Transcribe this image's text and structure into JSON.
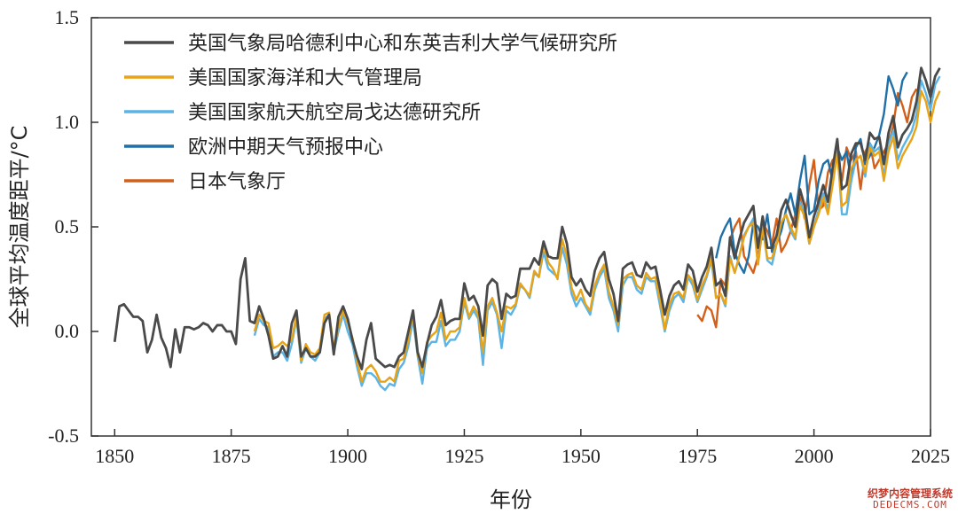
{
  "chart_data": {
    "type": "line",
    "xlabel": "年份",
    "ylabel": "全球平均温度距平/°C",
    "xlim": [
      1845,
      2025
    ],
    "ylim": [
      -0.5,
      1.5
    ],
    "xticks": [
      1850,
      1875,
      1900,
      1925,
      1950,
      1975,
      2000,
      2025
    ],
    "yticks": [
      "-0.5",
      "0.0",
      "0.5",
      "1.0",
      "1.5"
    ],
    "yticks_values": [
      -0.5,
      0.0,
      0.5,
      1.0,
      1.5
    ],
    "grid": false,
    "legend_position": "top-left",
    "series": [
      {
        "name": "英国气象局哈德利中心和东英吉利大学气候研究所",
        "color": "#4a4a4a",
        "start": 1850,
        "values": [
          -0.05,
          0.12,
          0.13,
          0.1,
          0.07,
          0.07,
          0.05,
          -0.1,
          -0.04,
          0.08,
          -0.03,
          -0.08,
          -0.17,
          0.01,
          -0.1,
          0.02,
          0.02,
          0.01,
          0.02,
          0.04,
          0.03,
          0.0,
          0.03,
          0.03,
          0.0,
          0.0,
          -0.06,
          0.25,
          0.35,
          0.05,
          0.04,
          0.12,
          0.06,
          -0.02,
          -0.13,
          -0.12,
          -0.07,
          -0.12,
          0.04,
          0.1,
          -0.12,
          -0.08,
          -0.12,
          -0.12,
          -0.1,
          0.04,
          0.08,
          -0.11,
          0.07,
          0.12,
          0.06,
          -0.04,
          -0.12,
          -0.18,
          -0.04,
          0.04,
          -0.13,
          -0.15,
          -0.17,
          -0.16,
          -0.17,
          -0.12,
          -0.1,
          0.0,
          0.1,
          -0.1,
          -0.17,
          -0.06,
          0.03,
          0.07,
          0.15,
          0.03,
          0.05,
          0.06,
          0.06,
          0.23,
          0.15,
          0.17,
          0.12,
          -0.02,
          0.22,
          0.25,
          0.23,
          0.06,
          0.18,
          0.16,
          0.17,
          0.3,
          0.3,
          0.3,
          0.35,
          0.32,
          0.43,
          0.36,
          0.35,
          0.35,
          0.5,
          0.42,
          0.26,
          0.22,
          0.25,
          0.2,
          0.17,
          0.29,
          0.35,
          0.38,
          0.25,
          0.18,
          0.05,
          0.3,
          0.32,
          0.33,
          0.27,
          0.26,
          0.33,
          0.3,
          0.31,
          0.2,
          0.08,
          0.17,
          0.22,
          0.24,
          0.2,
          0.32,
          0.29,
          0.19,
          0.26,
          0.31,
          0.4,
          0.22,
          0.24,
          0.17,
          0.45,
          0.35,
          0.44,
          0.52,
          0.56,
          0.6,
          0.4,
          0.55,
          0.4,
          0.4,
          0.46,
          0.58,
          0.63,
          0.56,
          0.5,
          0.68,
          0.6,
          0.45,
          0.55,
          0.62,
          0.7,
          0.62,
          0.78,
          0.92,
          0.68,
          0.7,
          0.85,
          0.9,
          0.9,
          0.82,
          0.95,
          0.92,
          0.93,
          0.8,
          0.95,
          1.03,
          0.88,
          0.94,
          0.97,
          1.01,
          1.1,
          1.26,
          1.2,
          1.12,
          1.22,
          1.26
        ]
      },
      {
        "name": "美国国家海洋和大气管理局",
        "color": "#e8a317",
        "start": 1880,
        "values": [
          0.0,
          0.08,
          0.05,
          0.04,
          -0.08,
          -0.07,
          -0.05,
          -0.07,
          -0.04,
          0.08,
          -0.14,
          -0.06,
          -0.1,
          -0.11,
          -0.08,
          0.08,
          0.09,
          -0.08,
          0.02,
          0.1,
          0.04,
          -0.03,
          -0.14,
          -0.24,
          -0.18,
          -0.16,
          -0.19,
          -0.24,
          -0.24,
          -0.22,
          -0.24,
          -0.14,
          -0.13,
          -0.04,
          0.09,
          -0.11,
          -0.2,
          -0.05,
          -0.02,
          0.0,
          0.09,
          -0.04,
          0.0,
          0.0,
          0.02,
          0.16,
          0.07,
          0.12,
          0.08,
          -0.1,
          0.12,
          0.16,
          0.09,
          0.0,
          0.12,
          0.11,
          0.13,
          0.23,
          0.2,
          0.17,
          0.29,
          0.26,
          0.42,
          0.33,
          0.3,
          0.25,
          0.44,
          0.36,
          0.21,
          0.15,
          0.2,
          0.13,
          0.1,
          0.22,
          0.28,
          0.32,
          0.19,
          0.12,
          0.03,
          0.25,
          0.27,
          0.28,
          0.22,
          0.2,
          0.28,
          0.25,
          0.26,
          0.15,
          0.01,
          0.13,
          0.18,
          0.19,
          0.16,
          0.27,
          0.24,
          0.15,
          0.22,
          0.27,
          0.36,
          0.16,
          0.18,
          0.13,
          0.35,
          0.28,
          0.36,
          0.45,
          0.5,
          0.52,
          0.32,
          0.5,
          0.35,
          0.35,
          0.42,
          0.52,
          0.56,
          0.5,
          0.45,
          0.6,
          0.55,
          0.42,
          0.5,
          0.56,
          0.64,
          0.56,
          0.7,
          0.85,
          0.6,
          0.62,
          0.78,
          0.82,
          0.84,
          0.76,
          0.88,
          0.84,
          0.86,
          0.72,
          0.86,
          0.93,
          0.78,
          0.84,
          0.88,
          0.92,
          0.98,
          1.15,
          1.1,
          1.0,
          1.1,
          1.15
        ]
      },
      {
        "name": "美国国家航天航空局戈达德研究所",
        "color": "#5bb4e5",
        "start": 1880,
        "values": [
          -0.02,
          0.06,
          0.03,
          0.02,
          -0.12,
          -0.1,
          -0.1,
          -0.14,
          -0.06,
          0.06,
          -0.15,
          -0.08,
          -0.12,
          -0.14,
          -0.1,
          0.06,
          0.08,
          -0.1,
          0.0,
          0.08,
          0.0,
          -0.06,
          -0.17,
          -0.26,
          -0.2,
          -0.2,
          -0.22,
          -0.26,
          -0.28,
          -0.25,
          -0.26,
          -0.18,
          -0.15,
          -0.07,
          0.06,
          -0.12,
          -0.25,
          -0.08,
          -0.05,
          -0.05,
          0.05,
          -0.07,
          -0.04,
          -0.04,
          0.0,
          0.14,
          0.06,
          0.1,
          0.06,
          -0.16,
          0.1,
          0.14,
          0.08,
          -0.08,
          0.1,
          0.08,
          0.12,
          0.22,
          0.2,
          0.16,
          0.28,
          0.26,
          0.38,
          0.3,
          0.28,
          0.26,
          0.4,
          0.32,
          0.18,
          0.12,
          0.16,
          0.12,
          0.08,
          0.2,
          0.26,
          0.3,
          0.16,
          0.1,
          0.0,
          0.22,
          0.26,
          0.26,
          0.2,
          0.18,
          0.26,
          0.24,
          0.24,
          0.12,
          0.0,
          0.1,
          0.16,
          0.18,
          0.14,
          0.26,
          0.22,
          0.14,
          0.2,
          0.26,
          0.34,
          0.16,
          0.18,
          0.12,
          0.36,
          0.28,
          0.36,
          0.46,
          0.5,
          0.54,
          0.32,
          0.5,
          0.34,
          0.32,
          0.42,
          0.52,
          0.56,
          0.48,
          0.44,
          0.62,
          0.56,
          0.42,
          0.5,
          0.58,
          0.66,
          0.58,
          0.72,
          0.88,
          0.56,
          0.56,
          0.72,
          0.82,
          0.84,
          0.74,
          0.9,
          0.86,
          0.88,
          0.74,
          0.9,
          0.96,
          0.82,
          0.88,
          0.92,
          0.96,
          1.04,
          1.2,
          1.14,
          1.06,
          1.18,
          1.22
        ]
      },
      {
        "name": "欧洲中期天气预报中心",
        "color": "#1f6fa8",
        "start": 1979,
        "values": [
          0.35,
          0.45,
          0.5,
          0.54,
          0.38,
          0.32,
          0.28,
          0.36,
          0.52,
          0.5,
          0.44,
          0.56,
          0.38,
          0.42,
          0.48,
          0.58,
          0.66,
          0.56,
          0.72,
          0.84,
          0.56,
          0.58,
          0.72,
          0.8,
          0.82,
          0.72,
          0.88,
          0.82,
          0.86,
          0.72,
          0.88,
          0.92,
          0.8,
          0.84,
          0.88,
          0.94,
          1.04,
          1.22,
          1.16,
          1.08,
          1.2,
          1.24
        ]
      },
      {
        "name": "日本气象厅",
        "color": "#d2601a",
        "start": 1975,
        "values": [
          0.08,
          0.05,
          0.12,
          0.1,
          0.02,
          0.25,
          0.22,
          0.44,
          0.5,
          0.54,
          0.36,
          0.32,
          0.28,
          0.36,
          0.52,
          0.48,
          0.42,
          0.54,
          0.38,
          0.42,
          0.48,
          0.56,
          0.64,
          0.54,
          0.7,
          0.82,
          0.58,
          0.6,
          0.76,
          0.82,
          0.84,
          0.72,
          0.88,
          0.82,
          0.86,
          0.68,
          0.86,
          0.9,
          0.78,
          0.82,
          0.86,
          0.9,
          0.98,
          1.14,
          1.08,
          1.0,
          1.12,
          1.16
        ]
      }
    ]
  },
  "watermark": {
    "line1": "织梦内容管理系统",
    "line2": "DEDECMS.COM"
  }
}
